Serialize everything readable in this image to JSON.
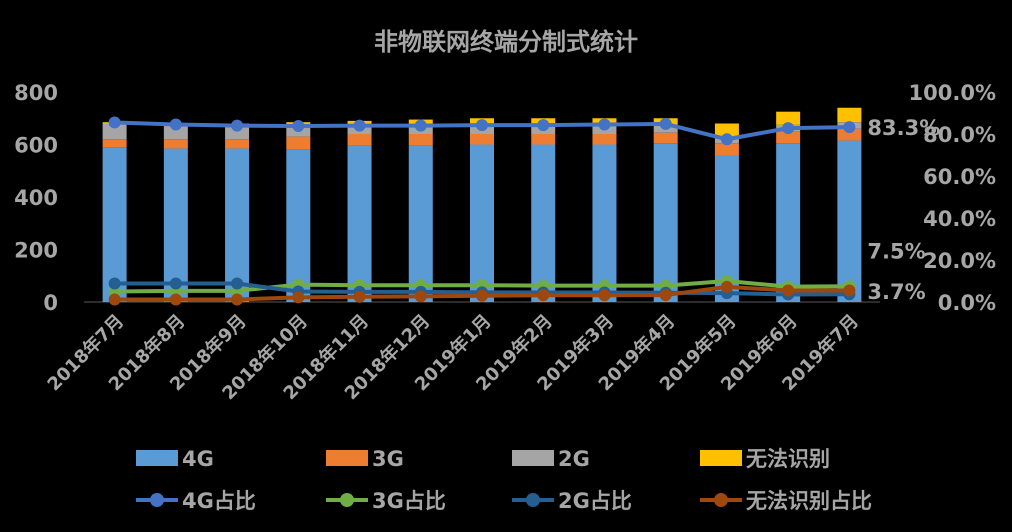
{
  "chart_data": {
    "type": "bar",
    "stacked": true,
    "title": "非物联网终端分制式统计",
    "categories": [
      "2018年7月",
      "2018年8月",
      "2018年9月",
      "2018年10月",
      "2018年11月",
      "2018年12月",
      "2019年1月",
      "2019年2月",
      "2019年3月",
      "2019年4月",
      "2019年5月",
      "2019年6月",
      "2019年7月"
    ],
    "y_left_ticks": [
      "0",
      "200",
      "400",
      "600",
      "800"
    ],
    "y_left_range": [
      0,
      800
    ],
    "y_right_ticks": [
      "0.0%",
      "20.0%",
      "40.0%",
      "60.0%",
      "80.0%",
      "100.0%"
    ],
    "y_right_range": [
      0,
      100
    ],
    "bar_series": [
      {
        "name": "4G",
        "color": "#5b9bd5",
        "values": [
          590,
          585,
          585,
          580,
          595,
          595,
          600,
          600,
          600,
          605,
          560,
          605,
          615
        ]
      },
      {
        "name": "3G",
        "color": "#ed7d31",
        "values": [
          30,
          35,
          35,
          50,
          45,
          45,
          40,
          40,
          40,
          40,
          45,
          45,
          45
        ]
      },
      {
        "name": "2G",
        "color": "#a5a5a5",
        "values": [
          60,
          55,
          55,
          40,
          35,
          35,
          35,
          35,
          35,
          30,
          25,
          25,
          25
        ]
      },
      {
        "name": "无法识别",
        "color": "#ffc000",
        "values": [
          5,
          5,
          5,
          15,
          15,
          20,
          25,
          25,
          25,
          25,
          50,
          50,
          55
        ]
      }
    ],
    "line_series": [
      {
        "name": "4G占比",
        "color": "#4472c4",
        "values": [
          85.5,
          84.5,
          84.0,
          83.8,
          84.0,
          84.0,
          84.2,
          84.2,
          84.5,
          84.8,
          77.5,
          82.8,
          83.3
        ]
      },
      {
        "name": "3G占比",
        "color": "#70ad47",
        "values": [
          5.0,
          5.3,
          5.3,
          8.3,
          8.0,
          8.0,
          8.0,
          7.8,
          7.8,
          7.8,
          10.0,
          7.3,
          7.5
        ]
      },
      {
        "name": "2G占比",
        "color": "#255e91",
        "values": [
          8.8,
          8.8,
          8.8,
          5.0,
          4.8,
          4.8,
          4.6,
          4.5,
          4.5,
          4.4,
          4.2,
          3.6,
          3.7
        ]
      },
      {
        "name": "无法识别占比",
        "color": "#9e480e",
        "values": [
          1.2,
          1.2,
          1.2,
          2.2,
          2.5,
          2.7,
          3.0,
          3.2,
          3.2,
          3.3,
          7.2,
          5.5,
          5.5
        ]
      }
    ],
    "data_labels": [
      "83.3%",
      "7.5%",
      "3.7%"
    ],
    "legend_position": "bottom"
  }
}
